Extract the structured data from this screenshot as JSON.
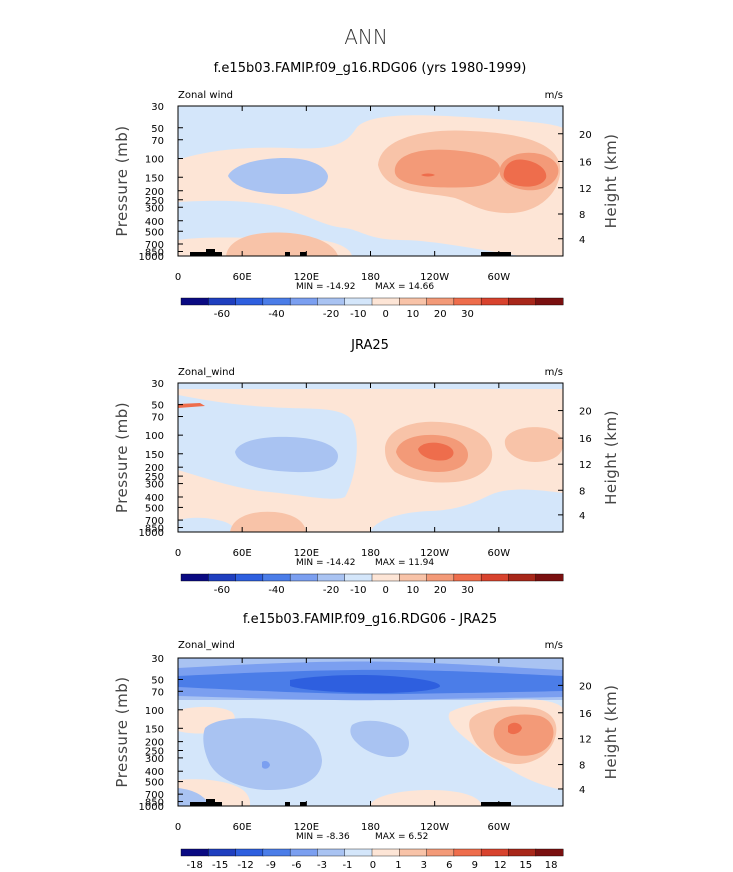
{
  "figure": {
    "title": "ANN",
    "colors": {
      "blue_-60": "#0a0a82",
      "blue_-50": "#1f3fbf",
      "blue_-40": "#2e5fdf",
      "blue_-30": "#4b7de8",
      "blue_-20": "#7b9ff0",
      "blue_-10": "#a9c3f2",
      "blue_0": "#d4e6fa",
      "red_0": "#fde5d6",
      "red_10": "#f8c3a8",
      "red_20": "#f39a78",
      "red_30": "#ee6d4c",
      "red_40": "#d8432e",
      "red_50": "#a8271a",
      "red_60": "#7a1010"
    }
  },
  "chart_data": [
    {
      "type": "heatmap",
      "title": "f.e15b03.FAMIP.f09_g16.RDG06 (yrs 1980-1999)",
      "variable": "Zonal wind",
      "units": "m/s",
      "ylabel": "Pressure (mb)",
      "y2label": "Height (km)",
      "xticks": [
        "0",
        "60E",
        "120E",
        "180",
        "120W",
        "60W"
      ],
      "pressure_ticks": [
        "30",
        "50",
        "70",
        "100",
        "150",
        "200",
        "250",
        "300",
        "400",
        "500",
        "700",
        "850",
        "1000"
      ],
      "height_ticks": [
        "20",
        "16",
        "12",
        "8",
        "4"
      ],
      "min_label": "MIN = -14.92",
      "max_label": "MAX = 14.66",
      "min": -14.92,
      "max": 14.66,
      "colorbar_labels": [
        "-60",
        "-40",
        "-20",
        "-10",
        "0",
        "10",
        "20",
        "30"
      ]
    },
    {
      "type": "heatmap",
      "title": "JRA25",
      "variable": "Zonal_wind",
      "units": "m/s",
      "ylabel": "Pressure (mb)",
      "y2label": "Height (km)",
      "xticks": [
        "0",
        "60E",
        "120E",
        "180",
        "120W",
        "60W"
      ],
      "pressure_ticks": [
        "30",
        "50",
        "70",
        "100",
        "150",
        "200",
        "250",
        "300",
        "400",
        "500",
        "700",
        "850",
        "1000"
      ],
      "height_ticks": [
        "20",
        "16",
        "12",
        "8",
        "4"
      ],
      "min_label": "MIN = -14.42",
      "max_label": "MAX = 11.94",
      "min": -14.42,
      "max": 11.94,
      "colorbar_labels": [
        "-60",
        "-40",
        "-20",
        "-10",
        "0",
        "10",
        "20",
        "30"
      ]
    },
    {
      "type": "heatmap",
      "title": "f.e15b03.FAMIP.f09_g16.RDG06 - JRA25",
      "variable": "Zonal_wind",
      "units": "m/s",
      "ylabel": "Pressure (mb)",
      "y2label": "Height (km)",
      "xticks": [
        "0",
        "60E",
        "120E",
        "180",
        "120W",
        "60W"
      ],
      "pressure_ticks": [
        "30",
        "50",
        "70",
        "100",
        "150",
        "200",
        "250",
        "300",
        "400",
        "500",
        "700",
        "850",
        "1000"
      ],
      "height_ticks": [
        "20",
        "16",
        "12",
        "8",
        "4"
      ],
      "min_label": "MIN = -8.36",
      "max_label": "MAX = 6.52",
      "min": -8.36,
      "max": 6.52,
      "colorbar_labels": [
        "-18",
        "-15",
        "-12",
        "-9",
        "-6",
        "-3",
        "-1",
        "0",
        "1",
        "3",
        "6",
        "9",
        "12",
        "15",
        "18"
      ]
    }
  ]
}
